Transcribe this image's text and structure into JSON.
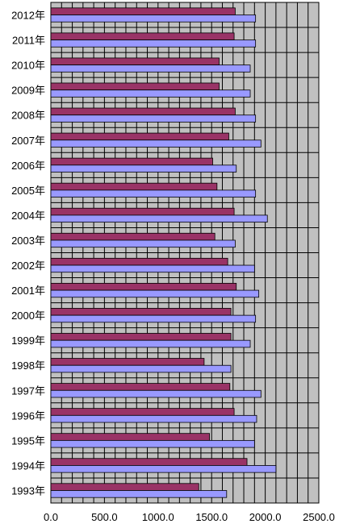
{
  "chart_data": {
    "type": "bar",
    "orientation": "horizontal",
    "categories": [
      "2012年",
      "2011年",
      "2010年",
      "2009年",
      "2008年",
      "2007年",
      "2006年",
      "2005年",
      "2004年",
      "2003年",
      "2002年",
      "2001年",
      "2000年",
      "1999年",
      "1998年",
      "1997年",
      "1996年",
      "1995年",
      "1994年",
      "1993年"
    ],
    "series": [
      {
        "values": [
          1720,
          1710,
          1570,
          1570,
          1720,
          1660,
          1510,
          1550,
          1710,
          1530,
          1650,
          1730,
          1680,
          1680,
          1430,
          1670,
          1710,
          1480,
          1830,
          1380
        ]
      },
      {
        "values": [
          1910,
          1910,
          1860,
          1860,
          1910,
          1960,
          1730,
          1910,
          2020,
          1720,
          1900,
          1940,
          1910,
          1860,
          1680,
          1960,
          1920,
          1900,
          2100,
          1640
        ]
      }
    ],
    "xlim": [
      0,
      2500
    ],
    "x_ticks": [
      "0.0",
      "500.0",
      "1000.0",
      "1500.0",
      "2000.0",
      "2500.0"
    ],
    "grid": true,
    "legend": "none",
    "colors": {
      "series1": "#993366",
      "series2": "#9999ff",
      "plot_background": "#c0c0c0",
      "gridline": "#000000"
    }
  }
}
